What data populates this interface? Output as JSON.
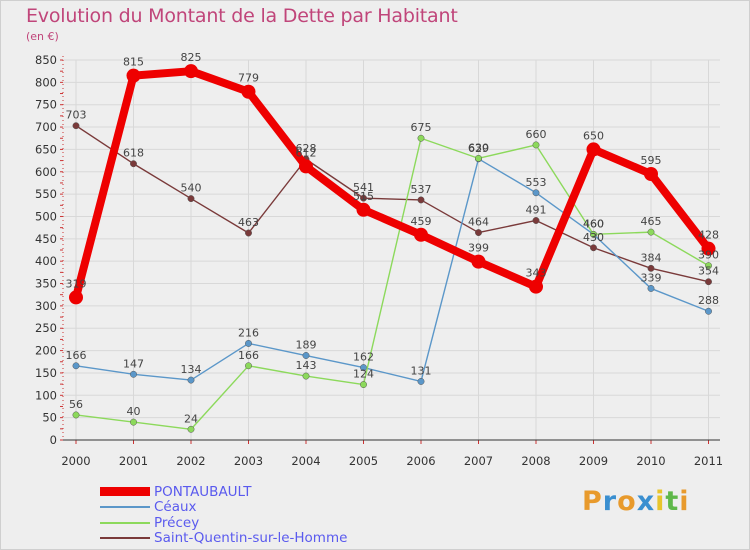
{
  "header": {
    "title": "Evolution du Montant de la Dette par Habitant",
    "subtitle": "(en €)"
  },
  "logo": {
    "text": "Proxiti",
    "letters": [
      "P",
      "r",
      "o",
      "x",
      "i",
      "t",
      "i"
    ],
    "colors": [
      "#e89a2c",
      "#3a8fd0",
      "#e89a2c",
      "#3a8fd0",
      "#e8c52c",
      "#5fb84a",
      "#e89a2c"
    ]
  },
  "chart_data": {
    "type": "line",
    "title": "Evolution du Montant de la Dette par Habitant",
    "subtitle": "(en €)",
    "xlabel": "",
    "ylabel": "",
    "categories": [
      "2000",
      "2001",
      "2002",
      "2003",
      "2004",
      "2005",
      "2006",
      "2007",
      "2008",
      "2009",
      "2010",
      "2011"
    ],
    "yticks": [
      "0",
      "50",
      "100",
      "150",
      "200",
      "250",
      "300",
      "350",
      "400",
      "450",
      "500",
      "550",
      "600",
      "650",
      "700",
      "750",
      "800",
      "850"
    ],
    "ylim": [
      0,
      850
    ],
    "grid": true,
    "legend": "bottom-left",
    "series": [
      {
        "name": "PONTAUBAULT",
        "color": "#ee0000",
        "values": [
          319,
          815,
          825,
          779,
          612,
          515,
          459,
          399,
          343,
          650,
          595,
          428
        ],
        "labels": [
          "319",
          "815",
          "825",
          "779",
          "612",
          "515",
          "459",
          "399",
          "343",
          "650",
          "595",
          "428"
        ]
      },
      {
        "name": "Céaux",
        "color": "#5b97c9",
        "values": [
          166,
          147,
          134,
          216,
          189,
          162,
          131,
          629,
          553,
          460,
          339,
          288
        ],
        "labels": [
          "166",
          "147",
          "134",
          "216",
          "189",
          "162",
          "131",
          "629",
          "553",
          "460",
          "339",
          "288"
        ]
      },
      {
        "name": "Précey",
        "color": "#8cd95b",
        "values": [
          56,
          40,
          24,
          166,
          143,
          124,
          675,
          630,
          660,
          460,
          465,
          390
        ],
        "labels": [
          "56",
          "40",
          "24",
          "166",
          "143",
          "124",
          "675",
          "630",
          "660",
          "460",
          "465",
          "390"
        ]
      },
      {
        "name": "Saint-Quentin-sur-le-Homme",
        "color": "#7a3a3a",
        "values": [
          703,
          618,
          540,
          463,
          628,
          541,
          537,
          464,
          491,
          430,
          384,
          354
        ],
        "labels": [
          "703",
          "618",
          "540",
          "463",
          "628",
          "541",
          "537",
          "464",
          "491",
          "430",
          "384",
          "354"
        ]
      }
    ]
  }
}
